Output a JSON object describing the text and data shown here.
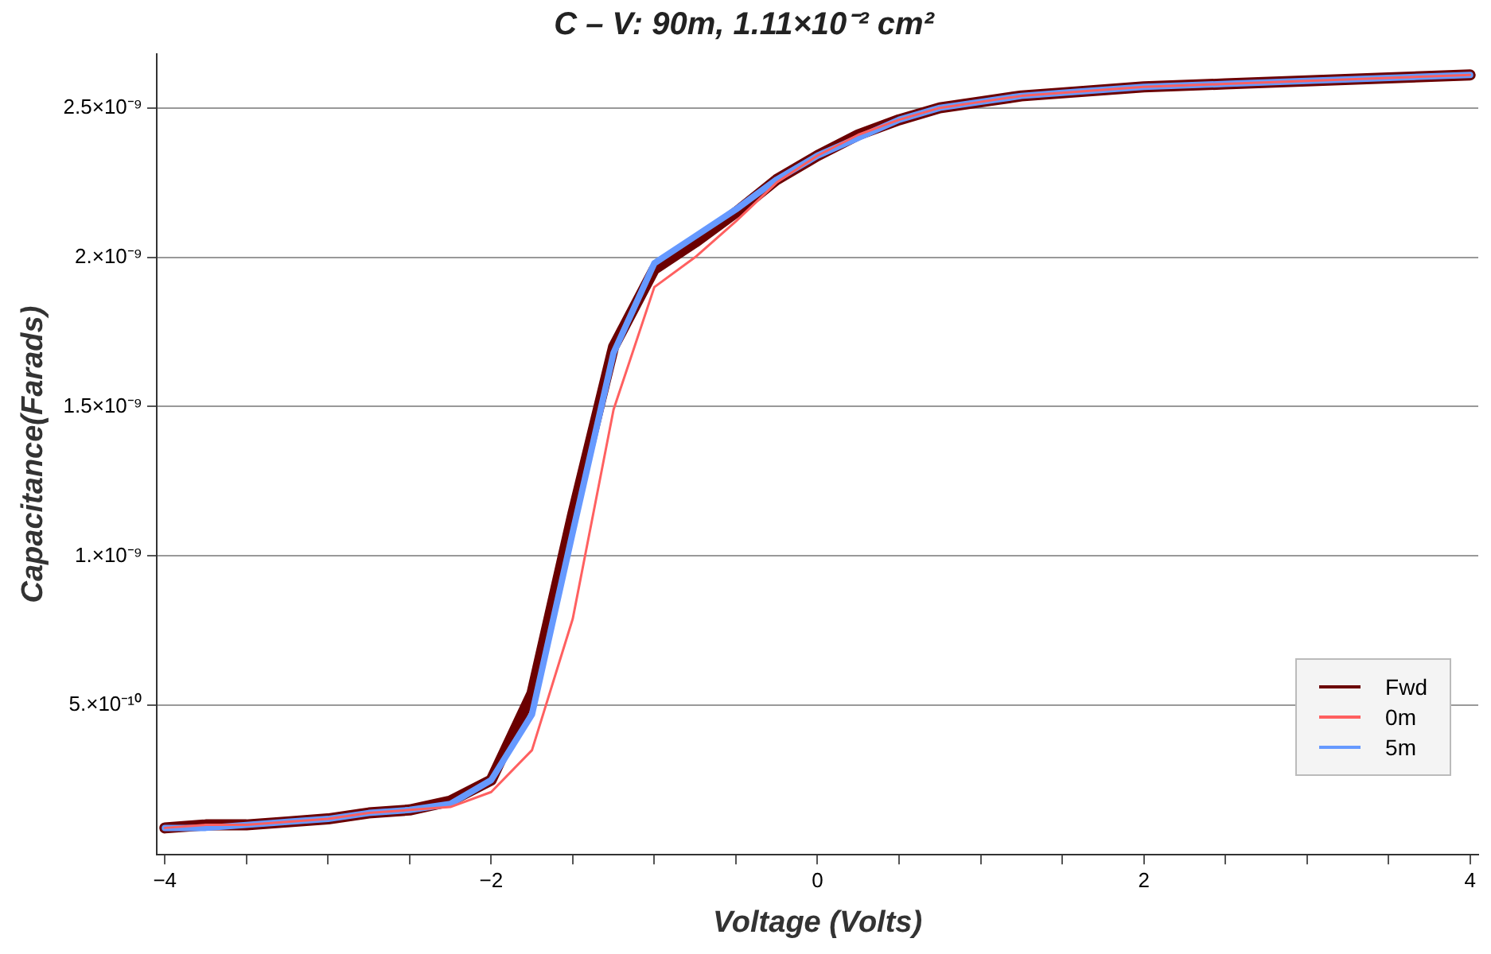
{
  "chart_data": {
    "type": "line",
    "title": "C – V: 90m, 1.11×10⁻² cm²",
    "xlabel": "Voltage (Volts)",
    "ylabel": "Capacitance(Farads)",
    "x": [
      -4,
      -3.75,
      -3.5,
      -3.25,
      -3,
      -2.75,
      -2.5,
      -2.25,
      -2,
      -1.75,
      -1.5,
      -1.25,
      -1,
      -0.75,
      -0.5,
      -0.25,
      0,
      0.25,
      0.5,
      0.75,
      1,
      1.25,
      1.5,
      2,
      2.5,
      3,
      3.5,
      4
    ],
    "series": [
      {
        "name": "Fwd",
        "color": "#6b0000",
        "values": [
          9e-11,
          1e-10,
          1e-10,
          1.1e-10,
          1.2e-10,
          1.4e-10,
          1.5e-10,
          1.8e-10,
          2.5e-10,
          5.4e-10,
          1.14e-09,
          1.7e-09,
          1.96e-09,
          2.05e-09,
          2.15e-09,
          2.26e-09,
          2.34e-09,
          2.41e-09,
          2.46e-09,
          2.5e-09,
          2.52e-09,
          2.54e-09,
          2.55e-09,
          2.57e-09,
          2.58e-09,
          2.59e-09,
          2.6e-09,
          2.61e-09
        ]
      },
      {
        "name": "0m",
        "color": "#ff6060",
        "values": [
          9e-11,
          1e-10,
          1e-10,
          1.1e-10,
          1.2e-10,
          1.4e-10,
          1.5e-10,
          1.6e-10,
          2.1e-10,
          3.5e-10,
          7.9e-10,
          1.49e-09,
          1.9e-09,
          2e-09,
          2.12e-09,
          2.25e-09,
          2.34e-09,
          2.41e-09,
          2.46e-09,
          2.5e-09,
          2.52e-09,
          2.54e-09,
          2.55e-09,
          2.57e-09,
          2.58e-09,
          2.59e-09,
          2.6e-09,
          2.61e-09
        ]
      },
      {
        "name": "5m",
        "color": "#6699ff",
        "values": [
          9e-11,
          9e-11,
          1e-10,
          1.1e-10,
          1.2e-10,
          1.4e-10,
          1.5e-10,
          1.7e-10,
          2.5e-10,
          4.7e-10,
          1.08e-09,
          1.68e-09,
          1.98e-09,
          2.07e-09,
          2.16e-09,
          2.26e-09,
          2.34e-09,
          2.4e-09,
          2.46e-09,
          2.5e-09,
          2.52e-09,
          2.54e-09,
          2.55e-09,
          2.57e-09,
          2.58e-09,
          2.59e-09,
          2.6e-09,
          2.61e-09
        ]
      }
    ],
    "xlim": [
      -4.05,
      4.05
    ],
    "xticks": [
      {
        "value": -4,
        "label": "−4"
      },
      {
        "value": -3.5,
        "label": null
      },
      {
        "value": -3,
        "label": null
      },
      {
        "value": -2.5,
        "label": null
      },
      {
        "value": -2,
        "label": "−2"
      },
      {
        "value": -1.5,
        "label": null
      },
      {
        "value": -1,
        "label": null
      },
      {
        "value": -0.5,
        "label": null
      },
      {
        "value": 0,
        "label": "0"
      },
      {
        "value": 0.5,
        "label": null
      },
      {
        "value": 1,
        "label": null
      },
      {
        "value": 1.5,
        "label": null
      },
      {
        "value": 2,
        "label": "2"
      },
      {
        "value": 2.5,
        "label": null
      },
      {
        "value": 3,
        "label": null
      },
      {
        "value": 3.5,
        "label": null
      },
      {
        "value": 4,
        "label": "4"
      }
    ],
    "ylim": [
      0,
      2.68e-09
    ],
    "yticks": [
      {
        "value": 5e-10,
        "label": "5.×10⁻¹⁰"
      },
      {
        "value": 1e-09,
        "label": "1.×10⁻⁹"
      },
      {
        "value": 1.5e-09,
        "label": "1.5×10⁻⁹"
      },
      {
        "value": 2e-09,
        "label": "2.×10⁻⁹"
      },
      {
        "value": 2.5e-09,
        "label": "2.5×10⁻⁹"
      }
    ],
    "grid": "y",
    "legend": "bottom right",
    "marker": "none",
    "line_style": "solid"
  }
}
